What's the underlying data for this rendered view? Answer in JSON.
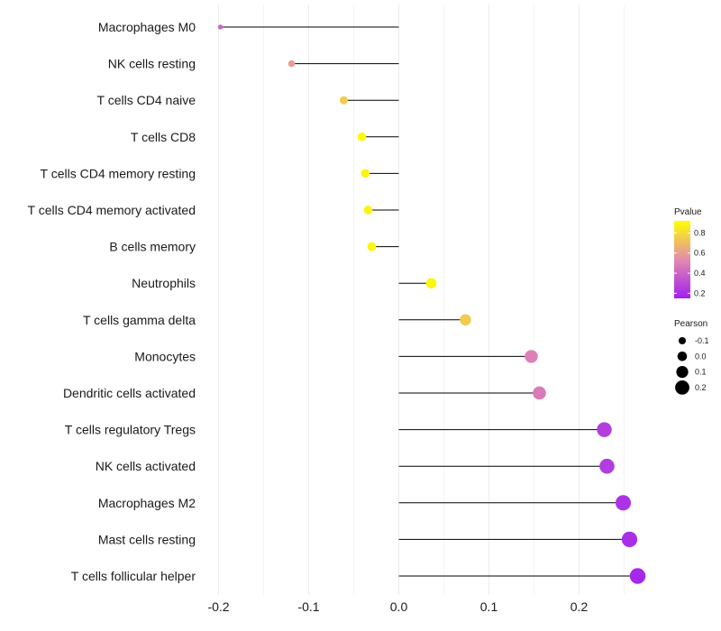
{
  "chart_data": {
    "type": "lollipop",
    "title": "",
    "xlabel": "",
    "ylabel": "",
    "xlim": [
      -0.2,
      0.27
    ],
    "xticks": [
      -0.2,
      -0.1,
      0.0,
      0.1,
      0.2
    ],
    "xtick_labels": [
      "-0.2",
      "-0.1",
      "0.0",
      "0.1",
      "0.2"
    ],
    "grid": true,
    "categories": [
      "Macrophages M0",
      "NK cells resting",
      "T cells CD4 naive",
      "T cells CD8",
      "T cells CD4 memory resting",
      "T cells CD4 memory activated",
      "B cells memory",
      "Neutrophils",
      "T cells gamma delta",
      "Monocytes",
      "Dendritic cells activated",
      "T cells regulatory  Tregs ",
      "NK cells activated",
      "Macrophages M2",
      "Mast cells resting",
      "T cells follicular helper"
    ],
    "values": [
      -0.198,
      -0.119,
      -0.061,
      -0.041,
      -0.037,
      -0.034,
      -0.03,
      0.036,
      0.074,
      0.147,
      0.156,
      0.228,
      0.231,
      0.249,
      0.256,
      0.265
    ],
    "pvalues": [
      0.4,
      0.6,
      0.75,
      0.9,
      0.88,
      0.88,
      0.89,
      0.89,
      0.75,
      0.5,
      0.48,
      0.26,
      0.25,
      0.22,
      0.2,
      0.18
    ],
    "legend_placement": "right",
    "colorbar": {
      "title": "Pvalue",
      "ticks": [
        "0.8",
        "0.6",
        "0.4",
        "0.2"
      ],
      "tick_values": [
        0.8,
        0.6,
        0.4,
        0.2
      ],
      "range": [
        0.15,
        0.92
      ],
      "color_low": "#a020f0",
      "color_mid": "#e38ab0",
      "color_high": "#ffff00"
    },
    "size_legend": {
      "title": "Pearson",
      "labels": [
        "-0.1",
        "0.0",
        "0.1",
        "0.2"
      ],
      "values": [
        -0.1,
        0.0,
        0.1,
        0.2
      ]
    }
  }
}
